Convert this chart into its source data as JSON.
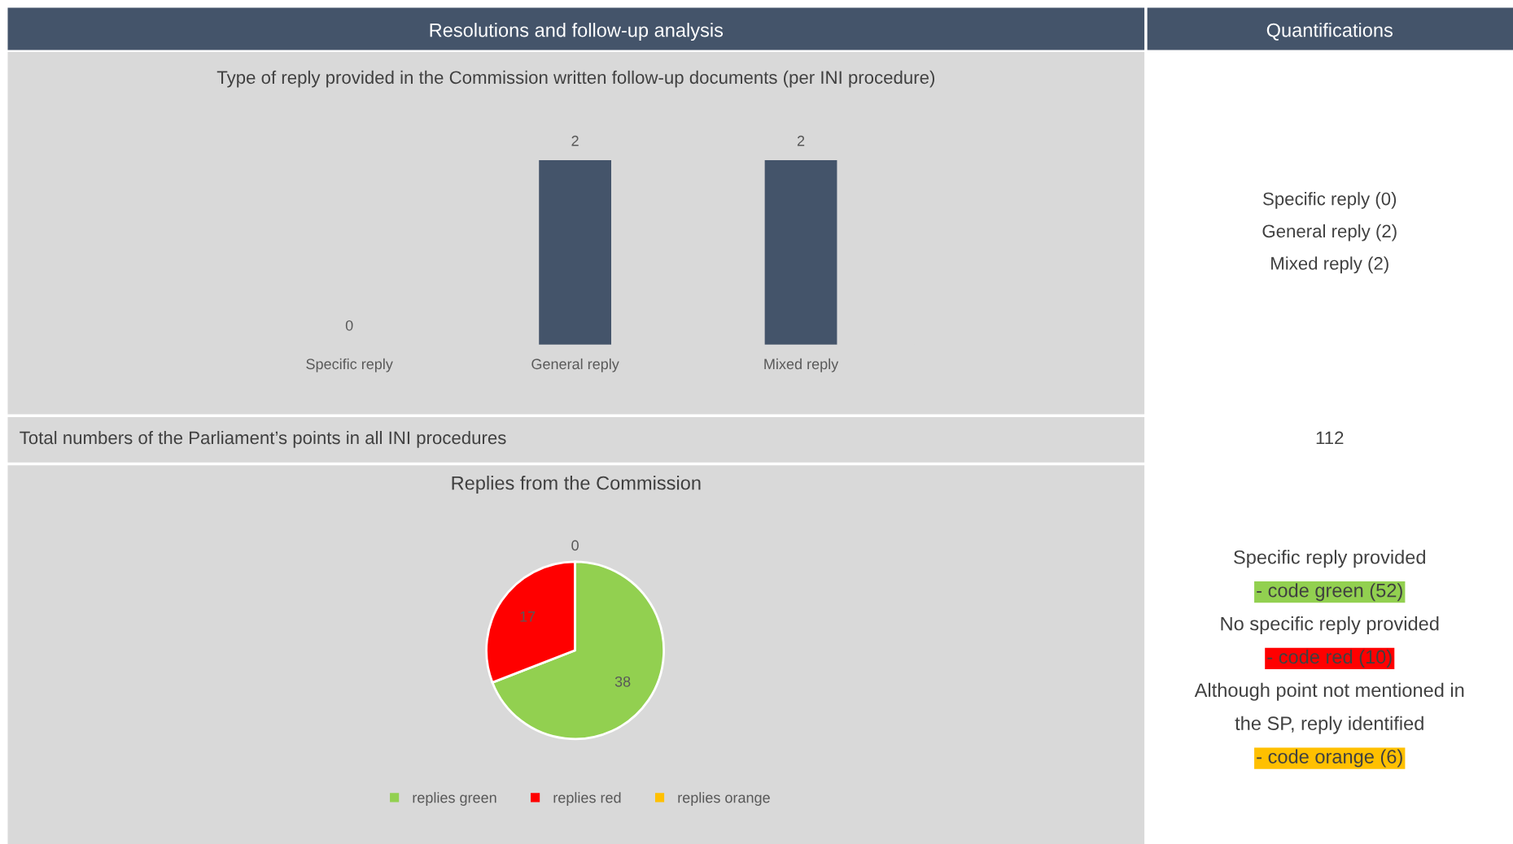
{
  "chart_data": [
    {
      "type": "other",
      "title": "Resolutions and follow-up analysis"
    },
    {
      "type": "other",
      "title": "Quantifications",
      "annotations": [
        "Specific reply (0)",
        "General reply (2)",
        "Mixed reply (2)"
      ]
    },
    {
      "type": "bar",
      "title": "Type of reply provided in the Commission written follow-up documents (per INI procedure)",
      "categories": [
        "Specific reply",
        "General reply",
        "Mixed reply"
      ],
      "values": [
        0,
        2,
        2
      ],
      "color": "#44546a",
      "data_labels": true
    },
    {
      "type": "other",
      "annotations": [
        "Total numbers of the Parliament’s points in all INI procedures",
        "112"
      ]
    },
    {
      "type": "pie",
      "title": "Replies from the Commission",
      "categories": [
        "replies green",
        "replies red",
        "replies orange"
      ],
      "values": [
        38,
        17,
        0
      ],
      "colors": [
        "#92d050",
        "#ff0000",
        "#ffc000"
      ],
      "value_labels": [
        "38",
        "17",
        "0"
      ],
      "legend": "bottom"
    },
    {
      "type": "other",
      "annotations": [
        "Specific reply provided",
        "- code green (52)",
        "No specific reply provided",
        "- code red (10)",
        "Although point not mentioned in",
        "the SP, reply identified",
        "- code orange (6)"
      ],
      "colors": [
        null,
        "#92d050",
        null,
        "#ff0000",
        null,
        null,
        "#ffc000"
      ]
    }
  ]
}
